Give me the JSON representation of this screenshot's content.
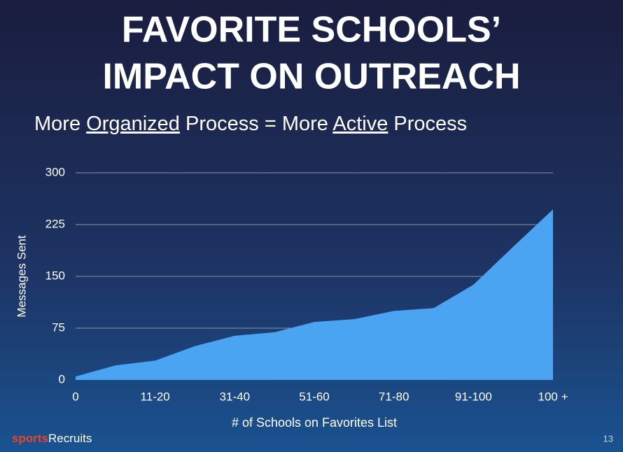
{
  "slide": {
    "title_lines": [
      "FAVORITE SCHOOLS’",
      "IMPACT ON OUTREACH"
    ],
    "subtitle": [
      {
        "text": "More "
      },
      {
        "text": "Organized",
        "underline": true
      },
      {
        "text": " Process = More "
      },
      {
        "text": "Active",
        "underline": true
      },
      {
        "text": " Process"
      }
    ],
    "logo": [
      "sports",
      "Recruits"
    ],
    "page_number": "13"
  },
  "chart_data": {
    "type": "area",
    "color": "#4ba4f2",
    "categories": [
      "0",
      null,
      "11-20",
      null,
      "31-40",
      null,
      "51-60",
      null,
      "71-80",
      null,
      "91-100",
      null,
      "100 +"
    ],
    "values": [
      5,
      21,
      28,
      49,
      64,
      69,
      84,
      88,
      100,
      104,
      138,
      193,
      247
    ],
    "ylabel": "Messages Sent",
    "xlabel": "# of Schools on Favorites List",
    "ylim": [
      0,
      300
    ],
    "yticks": [
      0,
      75,
      150,
      225,
      300
    ],
    "grid": true
  }
}
